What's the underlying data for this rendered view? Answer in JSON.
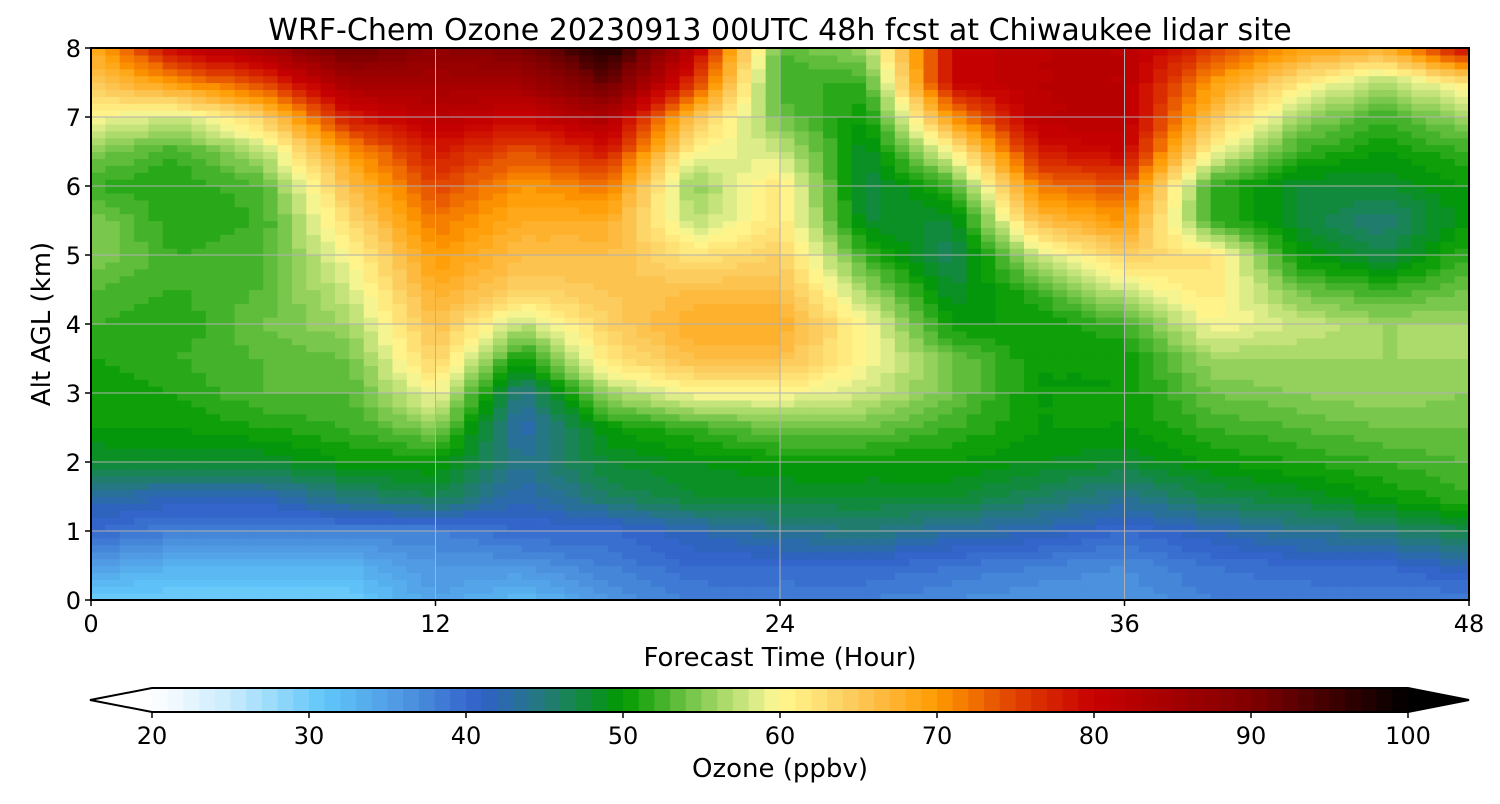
{
  "chart_data": {
    "type": "heatmap",
    "title": "WRF-Chem Ozone  20230913 00UTC 48h fcst at Chiwaukee lidar site",
    "xlabel": "Forecast Time (Hour)",
    "ylabel": "Alt AGL (km)",
    "xlim": [
      0,
      48
    ],
    "ylim": [
      0,
      8
    ],
    "xticks": [
      "0",
      "12",
      "24",
      "36",
      "48"
    ],
    "yticks": [
      "0",
      "1",
      "2",
      "3",
      "4",
      "5",
      "6",
      "7",
      "8"
    ],
    "grid": true,
    "x": [
      0,
      3,
      6,
      9,
      12,
      15,
      18,
      21,
      24,
      27,
      30,
      33,
      36,
      39,
      42,
      45,
      48
    ],
    "y": [
      0,
      0.5,
      1,
      1.5,
      2,
      2.5,
      3,
      3.5,
      4,
      4.5,
      5,
      5.5,
      6,
      6.5,
      7,
      7.5,
      8
    ],
    "values_by_time": [
      [
        30,
        35,
        40,
        43,
        48,
        50,
        50,
        51,
        52,
        53,
        55,
        55,
        52,
        55,
        60,
        65,
        68
      ],
      [
        30,
        33,
        38,
        42,
        48,
        50,
        51,
        52,
        51,
        52,
        52,
        51,
        51,
        52,
        58,
        70,
        80
      ],
      [
        30,
        33,
        38,
        42,
        48,
        51,
        53,
        53,
        54,
        53,
        53,
        52,
        53,
        57,
        64,
        75,
        85
      ],
      [
        30,
        33,
        38,
        45,
        50,
        52,
        53,
        54,
        56,
        58,
        60,
        63,
        66,
        70,
        78,
        85,
        92
      ],
      [
        35,
        36,
        38,
        47,
        50,
        55,
        60,
        64,
        66,
        68,
        70,
        72,
        75,
        78,
        82,
        85,
        88
      ],
      [
        32,
        36,
        40,
        42,
        44,
        42,
        44,
        50,
        57,
        64,
        66,
        68,
        70,
        74,
        80,
        85,
        90
      ],
      [
        36,
        38,
        40,
        46,
        48,
        50,
        56,
        62,
        64,
        65,
        66,
        68,
        72,
        78,
        84,
        92,
        98
      ],
      [
        38,
        40,
        42,
        48,
        49,
        52,
        60,
        66,
        68,
        66,
        62,
        57,
        55,
        60,
        66,
        76,
        82
      ],
      [
        38,
        40,
        44,
        48,
        50,
        54,
        60,
        66,
        68,
        66,
        64,
        62,
        62,
        58,
        54,
        52,
        53
      ],
      [
        38,
        40,
        45,
        48,
        50,
        54,
        58,
        60,
        60,
        56,
        52,
        48,
        47,
        48,
        50,
        52,
        56
      ],
      [
        37,
        39,
        43,
        48,
        50,
        52,
        54,
        54,
        50,
        48,
        46,
        48,
        52,
        60,
        70,
        80,
        80
      ],
      [
        36,
        38,
        42,
        46,
        49,
        50,
        50,
        50,
        50,
        52,
        58,
        66,
        72,
        78,
        82,
        82,
        82
      ],
      [
        36,
        37,
        40,
        44,
        48,
        50,
        50,
        50,
        52,
        58,
        64,
        70,
        74,
        80,
        82,
        82,
        82
      ],
      [
        38,
        39,
        42,
        47,
        50,
        52,
        54,
        56,
        60,
        62,
        62,
        52,
        52,
        60,
        66,
        70,
        76
      ],
      [
        38,
        40,
        44,
        48,
        51,
        53,
        55,
        56,
        58,
        54,
        50,
        48,
        48,
        52,
        56,
        62,
        70
      ],
      [
        38,
        40,
        45,
        50,
        52,
        54,
        56,
        56,
        56,
        52,
        47,
        45,
        48,
        50,
        52,
        56,
        68
      ],
      [
        38,
        42,
        47,
        52,
        53,
        54,
        55,
        56,
        56,
        54,
        52,
        50,
        50,
        52,
        56,
        62,
        80
      ]
    ],
    "colorbar": {
      "label": "Ozone  (ppbv)",
      "range": [
        20,
        100
      ],
      "step": 1,
      "extend": "both",
      "ticks": [
        "20",
        "30",
        "40",
        "50",
        "60",
        "70",
        "80",
        "90",
        "100"
      ],
      "anchors": [
        [
          20,
          "#ffffff"
        ],
        [
          25,
          "#c8ebfd"
        ],
        [
          31,
          "#60c6f9"
        ],
        [
          36,
          "#4e96e0"
        ],
        [
          41,
          "#3060c8"
        ],
        [
          45,
          "#237a7a"
        ],
        [
          50,
          "#009a00"
        ],
        [
          55,
          "#88cc55"
        ],
        [
          59,
          "#e8f090"
        ],
        [
          60,
          "#fff890"
        ],
        [
          65,
          "#fcc858"
        ],
        [
          70,
          "#ff9a00"
        ],
        [
          75,
          "#e04000"
        ],
        [
          80,
          "#c80000"
        ],
        [
          90,
          "#800000"
        ],
        [
          100,
          "#000000"
        ]
      ]
    }
  }
}
